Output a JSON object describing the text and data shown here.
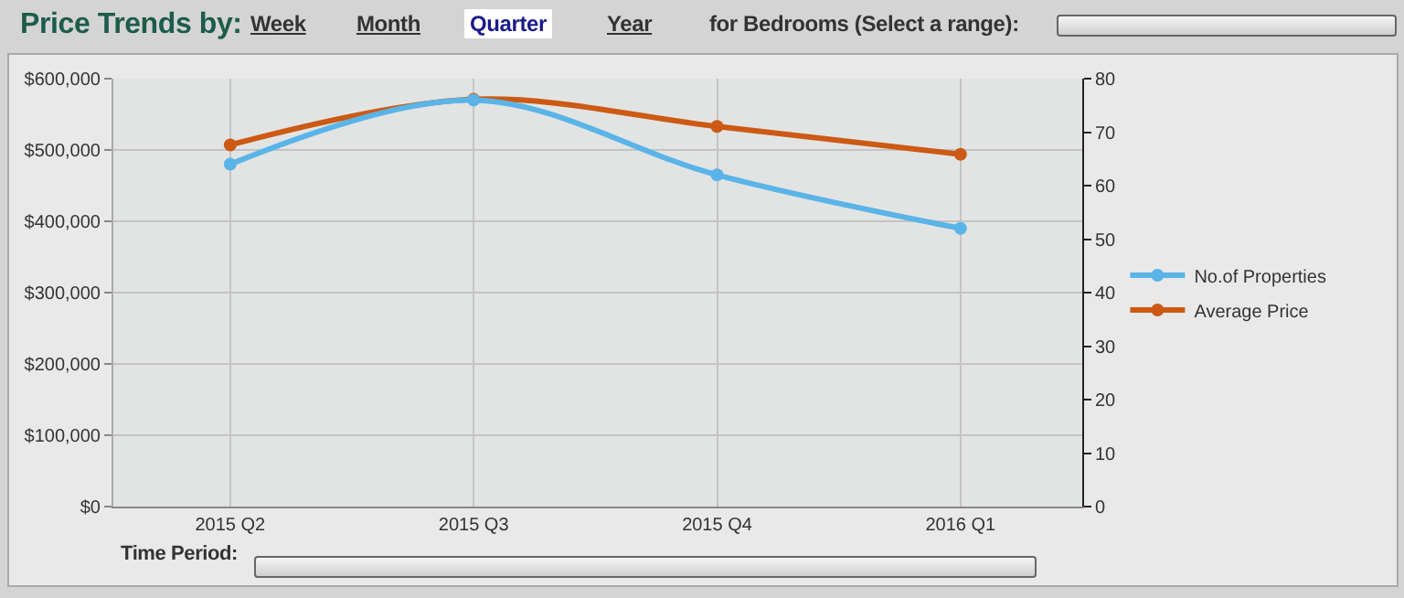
{
  "chart_data": {
    "type": "line",
    "title": "Price Trends by:",
    "annotations": [
      "Week",
      "Month",
      "Quarter",
      "Year",
      "for Bedrooms (Select a range):",
      "Time Period:"
    ],
    "categories": [
      "2015 Q2",
      "2015 Q3",
      "2015 Q4",
      "2016 Q1"
    ],
    "series": [
      {
        "name": "No.of Properties",
        "color": "#5ab4e8",
        "values": [
          64,
          76,
          62,
          52
        ],
        "axis": "y2"
      },
      {
        "name": "Average Price",
        "color": "#cc5a14",
        "values": [
          507000,
          571000,
          533000,
          494000
        ]
      }
    ],
    "ylim": [
      0,
      600000
    ],
    "yticks": [
      {
        "value": 0,
        "label": "$0"
      },
      {
        "value": 100000,
        "label": "$100,000"
      },
      {
        "value": 200000,
        "label": "$200,000"
      },
      {
        "value": 300000,
        "label": "$300,000"
      },
      {
        "value": 400000,
        "label": "$400,000"
      },
      {
        "value": 500000,
        "label": "$500,000"
      },
      {
        "value": 600000,
        "label": "$600,000"
      }
    ],
    "y2lim": [
      0,
      80
    ],
    "y2ticks": [
      0,
      10,
      20,
      30,
      40,
      50,
      60,
      70,
      80
    ],
    "grid": true,
    "legend": "right",
    "marker": "circle",
    "line_style": "solid"
  }
}
